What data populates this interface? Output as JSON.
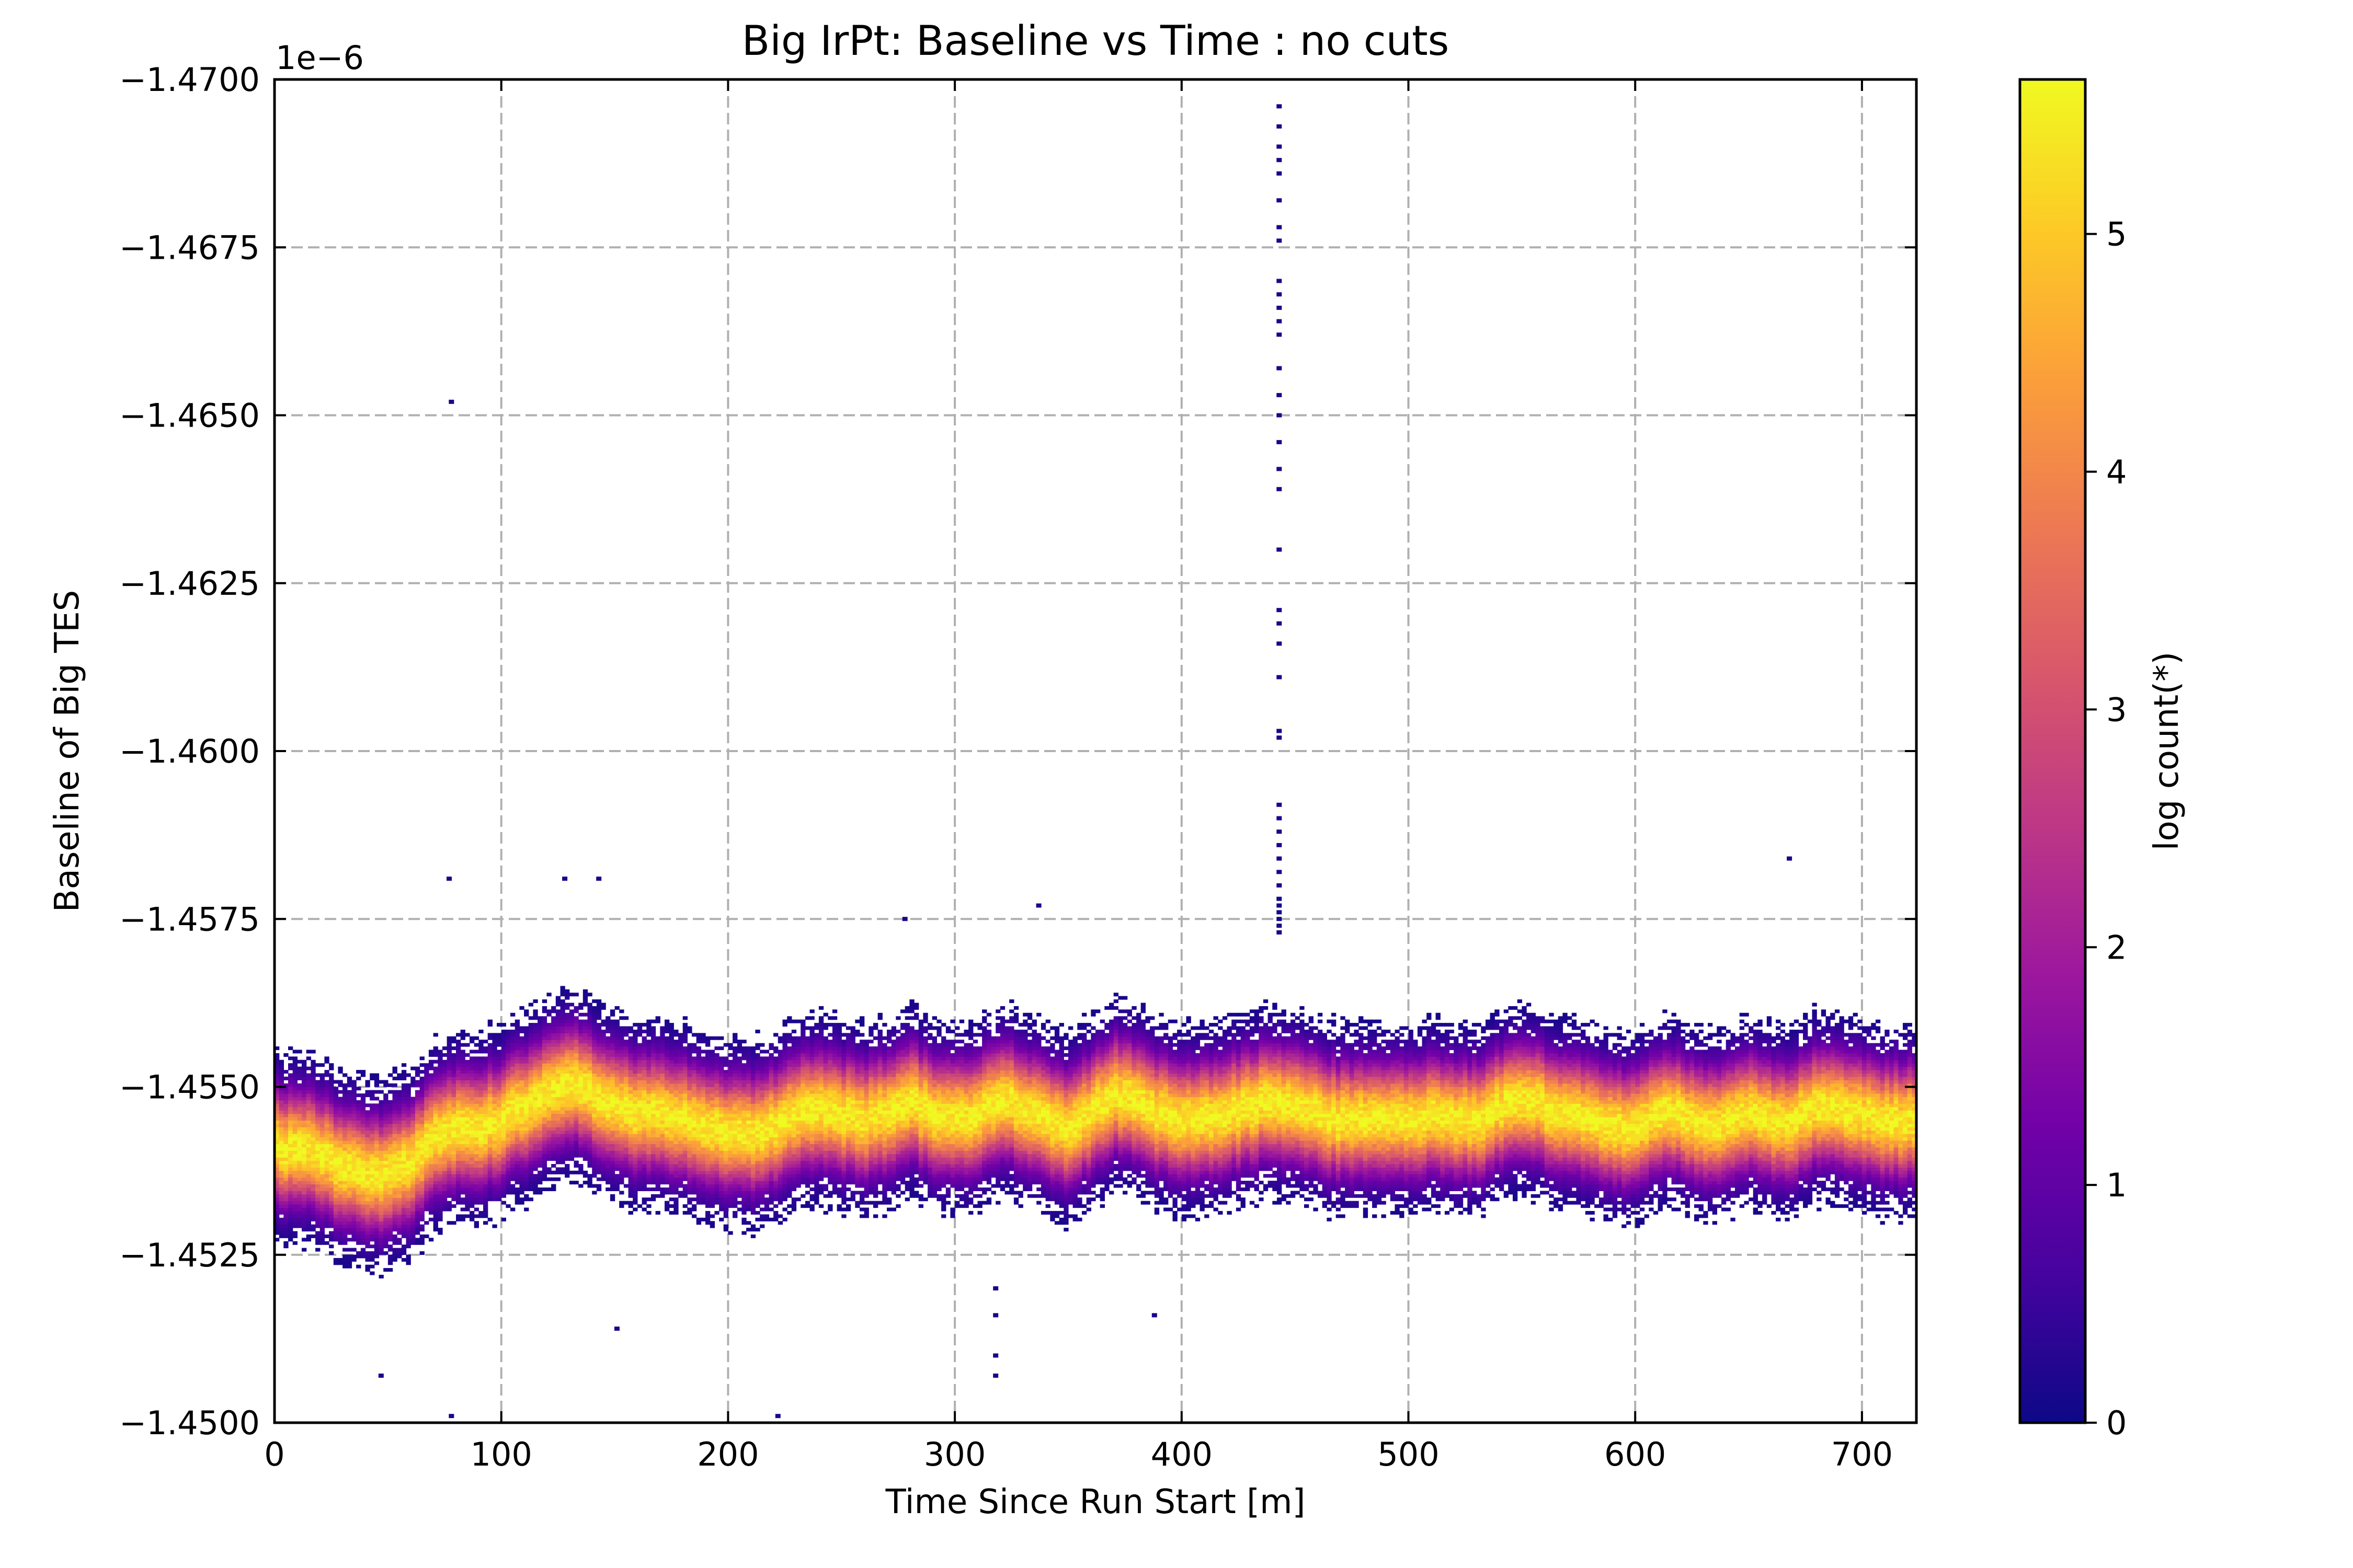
{
  "chart_data": {
    "type": "heatmap",
    "title": "Big IrPt: Baseline vs Time : no cuts",
    "xlabel": "Time Since Run Start [m]",
    "ylabel": "Baseline of Big TES",
    "y_offset_label": "1e−6",
    "xlim": [
      0,
      724
    ],
    "ylim": [
      -1.45,
      -1.47
    ],
    "y_axis_inverted": true,
    "x_ticks": [
      0,
      100,
      200,
      300,
      400,
      500,
      600,
      700
    ],
    "x_tick_labels": [
      "0",
      "100",
      "200",
      "300",
      "400",
      "500",
      "600",
      "700"
    ],
    "y_ticks": [
      -1.47,
      -1.4675,
      -1.465,
      -1.4625,
      -1.46,
      -1.4575,
      -1.455,
      -1.4525,
      -1.45
    ],
    "y_tick_labels": [
      "−1.4700",
      "−1.4675",
      "−1.4650",
      "−1.4625",
      "−1.4600",
      "−1.4575",
      "−1.4550",
      "−1.4525",
      "−1.4500"
    ],
    "grid": true,
    "colormap": "plasma",
    "colorbar": {
      "label": "log count(*)",
      "range": [
        0,
        5.65
      ],
      "ticks": [
        0,
        1,
        2,
        3,
        4,
        5
      ],
      "tick_labels": [
        "0",
        "1",
        "2",
        "3",
        "4",
        "5"
      ],
      "colors": [
        "#0d0887",
        "#46039f",
        "#7201a8",
        "#9c179e",
        "#bd3786",
        "#d8576b",
        "#ed7953",
        "#fb9f3a",
        "#fdca26",
        "#f0f921"
      ]
    },
    "band_center_trace": {
      "time": [
        0,
        10,
        20,
        30,
        40,
        50,
        60,
        70,
        80,
        90,
        100,
        110,
        120,
        130,
        140,
        150,
        160,
        170,
        180,
        190,
        200,
        210,
        220,
        230,
        240,
        250,
        260,
        270,
        280,
        290,
        300,
        310,
        320,
        330,
        340,
        350,
        360,
        370,
        380,
        390,
        400,
        410,
        420,
        430,
        440,
        450,
        460,
        470,
        480,
        490,
        500,
        510,
        520,
        530,
        540,
        550,
        560,
        570,
        580,
        590,
        600,
        610,
        620,
        630,
        640,
        650,
        660,
        670,
        680,
        690,
        700,
        710,
        720
      ],
      "baseline": [
        -1.4541,
        -1.4541,
        -1.454,
        -1.4538,
        -1.4537,
        -1.4537,
        -1.4539,
        -1.4542,
        -1.4544,
        -1.4544,
        -1.4545,
        -1.4547,
        -1.4549,
        -1.4551,
        -1.4549,
        -1.4547,
        -1.4546,
        -1.4546,
        -1.4545,
        -1.4544,
        -1.4543,
        -1.4543,
        -1.4544,
        -1.4546,
        -1.4547,
        -1.4546,
        -1.4545,
        -1.4546,
        -1.4548,
        -1.4546,
        -1.4545,
        -1.4546,
        -1.4548,
        -1.4547,
        -1.4545,
        -1.4544,
        -1.4546,
        -1.4549,
        -1.4548,
        -1.4546,
        -1.4545,
        -1.4545,
        -1.4546,
        -1.4547,
        -1.4548,
        -1.4547,
        -1.4546,
        -1.4545,
        -1.4545,
        -1.4545,
        -1.4545,
        -1.4546,
        -1.4545,
        -1.4545,
        -1.4547,
        -1.4548,
        -1.4547,
        -1.4546,
        -1.4545,
        -1.4544,
        -1.4544,
        -1.4546,
        -1.4546,
        -1.4544,
        -1.4545,
        -1.4546,
        -1.4545,
        -1.4545,
        -1.4547,
        -1.4547,
        -1.4546,
        -1.4545,
        -1.4545
      ],
      "band_half_width": 0.0012
    },
    "outlier_points": [
      {
        "x": 78,
        "y": -1.4652
      },
      {
        "x": 77,
        "y": -1.4581
      },
      {
        "x": 128,
        "y": -1.4581
      },
      {
        "x": 143,
        "y": -1.4581
      },
      {
        "x": 668,
        "y": -1.4584
      },
      {
        "x": 337,
        "y": -1.4577
      },
      {
        "x": 278,
        "y": -1.4575
      },
      {
        "x": 47,
        "y": -1.4507
      },
      {
        "x": 151,
        "y": -1.4514
      },
      {
        "x": 78,
        "y": -1.4501
      },
      {
        "x": 222,
        "y": -1.4501
      },
      {
        "x": 318,
        "y": -1.4507
      },
      {
        "x": 318,
        "y": -1.451
      },
      {
        "x": 318,
        "y": -1.4516
      },
      {
        "x": 318,
        "y": -1.452
      },
      {
        "x": 388,
        "y": -1.4516
      }
    ],
    "spike_column": {
      "x": 443,
      "y_values": [
        -1.4696,
        -1.4693,
        -1.469,
        -1.4688,
        -1.4686,
        -1.4682,
        -1.4678,
        -1.4676,
        -1.467,
        -1.4668,
        -1.4666,
        -1.4664,
        -1.4662,
        -1.4657,
        -1.4653,
        -1.465,
        -1.4646,
        -1.4642,
        -1.4639,
        -1.463,
        -1.4621,
        -1.4619,
        -1.4616,
        -1.4611,
        -1.4603,
        -1.4602,
        -1.4592,
        -1.459,
        -1.4588,
        -1.4586,
        -1.4584,
        -1.4582,
        -1.458,
        -1.4578,
        -1.4577,
        -1.4576,
        -1.4575,
        -1.4574,
        -1.4573
      ]
    }
  }
}
